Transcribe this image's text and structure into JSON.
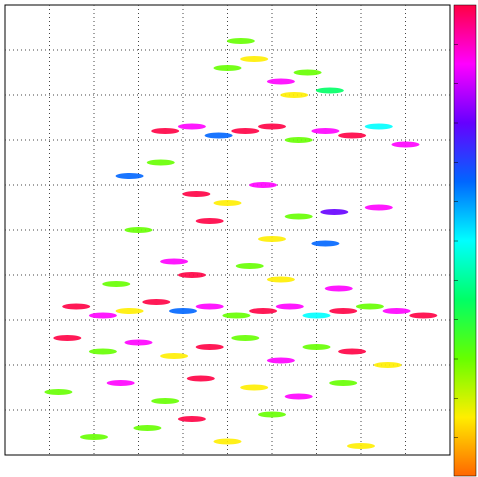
{
  "chart_data": {
    "type": "scatter",
    "xlim": [
      0,
      10
    ],
    "ylim": [
      0,
      10
    ],
    "xticks": [
      1,
      2,
      3,
      4,
      5,
      6,
      7,
      8,
      9
    ],
    "yticks": [
      1,
      2,
      3,
      4,
      5,
      6,
      7,
      8,
      9
    ],
    "grid": true,
    "colormap": [
      "#ff6600",
      "#ffee00",
      "#66ff00",
      "#00ff66",
      "#00ffff",
      "#0066ff",
      "#6600ff",
      "#ff00ff",
      "#ff0044"
    ],
    "series": [
      {
        "name": null,
        "x": [
          1.6,
          2.2,
          2.8,
          3.4,
          4.0,
          4.6,
          5.2,
          5.8,
          6.4,
          7.0,
          7.6,
          8.2,
          8.8,
          9.4,
          3.6,
          4.2,
          4.8,
          5.4,
          6.0,
          6.6,
          7.2,
          7.8,
          8.4,
          9.0,
          5.0,
          5.6,
          6.2,
          6.8,
          7.3,
          5.3,
          6.5,
          2.8,
          3.5,
          4.3,
          5.0,
          5.8,
          6.6,
          7.4,
          8.4,
          3.0,
          4.6,
          6.0,
          7.2,
          2.5,
          3.8,
          4.2,
          5.5,
          6.2,
          7.5,
          1.4,
          2.2,
          3.0,
          3.8,
          4.6,
          5.4,
          6.2,
          7.0,
          7.8,
          8.6,
          1.2,
          2.6,
          3.6,
          4.4,
          5.6,
          6.6,
          7.6,
          3.2,
          4.2,
          5.0,
          6.0,
          2.0,
          8.0
        ],
        "y": [
          3.3,
          3.1,
          3.2,
          3.4,
          3.2,
          3.3,
          3.1,
          3.2,
          3.3,
          3.1,
          3.2,
          3.3,
          3.2,
          3.1,
          7.2,
          7.3,
          7.1,
          7.2,
          7.3,
          7.0,
          7.2,
          7.1,
          7.3,
          6.9,
          8.6,
          8.8,
          8.3,
          8.5,
          8.1,
          9.2,
          8.0,
          6.2,
          6.5,
          5.8,
          5.6,
          6.0,
          5.3,
          5.4,
          5.5,
          5.0,
          5.2,
          4.8,
          4.7,
          3.8,
          4.3,
          4.0,
          4.2,
          3.9,
          3.7,
          2.6,
          2.3,
          2.5,
          2.2,
          2.4,
          2.6,
          2.1,
          2.4,
          2.3,
          2.0,
          1.4,
          1.6,
          1.2,
          1.7,
          1.5,
          1.3,
          1.6,
          0.6,
          0.8,
          0.3,
          0.9,
          0.4,
          0.2
        ],
        "c": [
          0.95,
          0.9,
          0.1,
          0.95,
          0.6,
          0.9,
          0.3,
          0.95,
          0.9,
          0.5,
          0.95,
          0.2,
          0.9,
          0.95,
          0.95,
          0.9,
          0.6,
          0.95,
          0.95,
          0.2,
          0.9,
          0.95,
          0.5,
          0.9,
          0.3,
          0.1,
          0.9,
          0.2,
          0.4,
          0.3,
          0.1,
          0.6,
          0.2,
          0.95,
          0.1,
          0.9,
          0.2,
          0.7,
          0.9,
          0.3,
          0.95,
          0.1,
          0.6,
          0.2,
          0.9,
          0.95,
          0.3,
          0.1,
          0.9,
          0.95,
          0.2,
          0.9,
          0.1,
          0.95,
          0.3,
          0.9,
          0.2,
          0.95,
          0.1,
          0.3,
          0.9,
          0.2,
          0.95,
          0.1,
          0.9,
          0.3,
          0.2,
          0.95,
          0.1,
          0.3,
          0.2,
          0.1
        ]
      }
    ]
  }
}
